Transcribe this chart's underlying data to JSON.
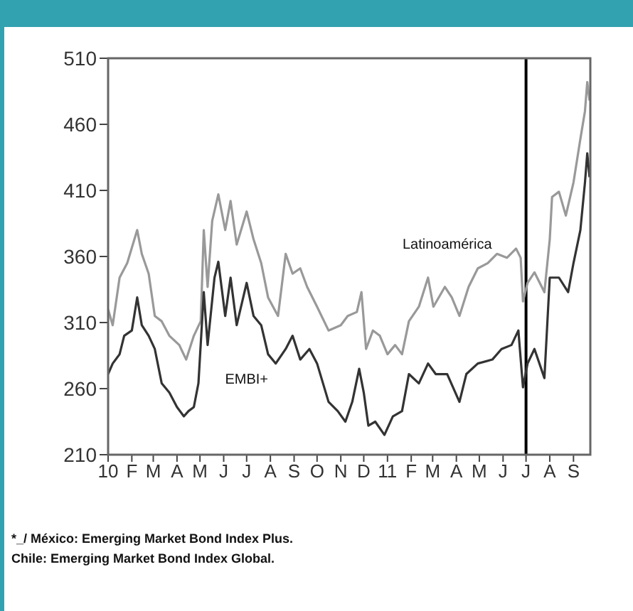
{
  "chart_data": {
    "type": "line",
    "x": [
      "2010-01-01",
      "2010-01-07",
      "2010-01-16",
      "2010-01-22",
      "2010-01-26",
      "2010-02-01",
      "2010-02-08",
      "2010-02-14",
      "2010-02-23",
      "2010-03-03",
      "2010-03-12",
      "2010-03-22",
      "2010-04-01",
      "2010-04-04",
      "2010-04-10",
      "2010-04-13",
      "2010-04-16",
      "2010-04-23",
      "2010-04-29",
      "2010-05-02",
      "2010-05-06",
      "2010-05-11",
      "2010-05-17",
      "2010-05-20",
      "2010-05-25",
      "2010-06-03",
      "2010-06-10",
      "2010-06-18",
      "2010-07-01",
      "2010-07-10",
      "2010-07-20",
      "2010-07-29",
      "2010-08-08",
      "2010-08-11",
      "2010-08-21",
      "2010-08-30",
      "2010-09-09",
      "2010-09-18",
      "2010-09-21",
      "2010-10-01",
      "2010-10-16",
      "2010-10-28",
      "2010-11-01",
      "2010-11-07",
      "2010-11-10",
      "2010-11-16",
      "2010-11-22",
      "2010-11-25",
      "2010-11-28",
      "2010-12-01",
      "2010-12-04",
      "2010-12-07",
      "2010-12-13",
      "2010-12-16",
      "2010-12-22",
      "2010-12-28",
      "2011-01-01",
      "2011-01-08",
      "2011-01-11",
      "2011-01-20",
      "2011-01-29",
      "2011-02-11",
      "2011-02-23",
      "2011-03-02",
      "2011-03-05",
      "2011-03-17",
      "2011-03-20",
      "2011-03-26",
      "2011-04-05",
      "2011-04-14",
      "2011-04-17",
      "2011-04-29",
      "2011-05-12",
      "2011-05-18",
      "2011-05-24",
      "2011-05-30",
      "2011-06-06",
      "2011-06-12",
      "2011-06-18",
      "2011-06-21",
      "2011-06-24",
      "2011-06-27",
      "2011-07-03",
      "2011-07-12",
      "2011-07-25",
      "2011-08-01",
      "2011-08-04",
      "2011-08-13",
      "2011-08-22",
      "2011-08-25",
      "2011-09-01",
      "2011-09-10",
      "2011-09-16",
      "2011-09-19",
      "2011-09-22"
    ],
    "series": [
      {
        "name": "Latinoamérica",
        "color": "#999999",
        "values": [
          320,
          308,
          344,
          null,
          355,
          null,
          380,
          362,
          347,
          315,
          311,
          300,
          null,
          293,
          null,
          282,
          null,
          300,
          null,
          311,
          380,
          337,
          387,
          null,
          407,
          380,
          402,
          369,
          394,
          373,
          355,
          329,
          null,
          315,
          362,
          347,
          351,
          337,
          null,
          322,
          304,
          null,
          308,
          null,
          315,
          null,
          318,
          null,
          333,
          null,
          290,
          null,
          304,
          null,
          300,
          null,
          286,
          null,
          293,
          286,
          311,
          322,
          344,
          322,
          null,
          337,
          null,
          329,
          315,
          null,
          337,
          351,
          355,
          null,
          362,
          null,
          359,
          null,
          366,
          null,
          359,
          326,
          340,
          348,
          333,
          373,
          405,
          409,
          391,
          null,
          416,
          449,
          470,
          492,
          478
        ]
      },
      {
        "name": "EMBI+",
        "color": "#333333",
        "values": [
          271,
          279,
          286,
          300,
          null,
          304,
          329,
          308,
          300,
          290,
          264,
          257,
          246,
          null,
          239,
          null,
          243,
          246,
          264,
          null,
          333,
          293,
          null,
          344,
          356,
          315,
          344,
          308,
          340,
          315,
          308,
          286,
          279,
          null,
          290,
          300,
          282,
          null,
          290,
          279,
          250,
          243,
          null,
          235,
          null,
          250,
          null,
          275,
          null,
          257,
          null,
          232,
          null,
          235,
          null,
          225,
          null,
          239,
          null,
          243,
          271,
          264,
          279,
          null,
          271,
          null,
          271,
          null,
          250,
          271,
          null,
          279,
          null,
          282,
          null,
          290,
          null,
          293,
          null,
          304,
          null,
          261,
          279,
          290,
          268,
          344,
          null,
          344,
          null,
          333,
          355,
          380,
          416,
          438,
          420
        ]
      }
    ],
    "xlim": [
      "2010-01-01",
      "2011-09-23"
    ],
    "xticks": [
      {
        "value": "2010-01-01",
        "label": "10"
      },
      {
        "value": "2010-02-01",
        "label": "F"
      },
      {
        "value": "2010-03-01",
        "label": "M"
      },
      {
        "value": "2010-04-01",
        "label": "A"
      },
      {
        "value": "2010-05-01",
        "label": "M"
      },
      {
        "value": "2010-06-01",
        "label": "J"
      },
      {
        "value": "2010-07-01",
        "label": "J"
      },
      {
        "value": "2010-08-01",
        "label": "A"
      },
      {
        "value": "2010-09-01",
        "label": "S"
      },
      {
        "value": "2010-10-01",
        "label": "O"
      },
      {
        "value": "2010-11-01",
        "label": "N"
      },
      {
        "value": "2010-12-01",
        "label": "D"
      },
      {
        "value": "2011-01-01",
        "label": "11"
      },
      {
        "value": "2011-02-01",
        "label": "F"
      },
      {
        "value": "2011-03-01",
        "label": "M"
      },
      {
        "value": "2011-04-01",
        "label": "A"
      },
      {
        "value": "2011-05-01",
        "label": "M"
      },
      {
        "value": "2011-06-01",
        "label": "J"
      },
      {
        "value": "2011-07-01",
        "label": "J"
      },
      {
        "value": "2011-08-01",
        "label": "A"
      },
      {
        "value": "2011-09-01",
        "label": "S"
      }
    ],
    "ylim": [
      210,
      510
    ],
    "yticks": [
      210,
      260,
      310,
      360,
      410,
      460,
      510
    ],
    "ref_lines": [
      {
        "axis": "x",
        "value": "2011-07-01",
        "label": null,
        "color": "#000000"
      }
    ],
    "annotations": [
      "*_/ México: Emerging Market Bond Index Plus.",
      "Chile: Emerging Market Bond Index Global."
    ],
    "grid": false,
    "legend": false,
    "marker": "none",
    "line_style": "solid"
  }
}
